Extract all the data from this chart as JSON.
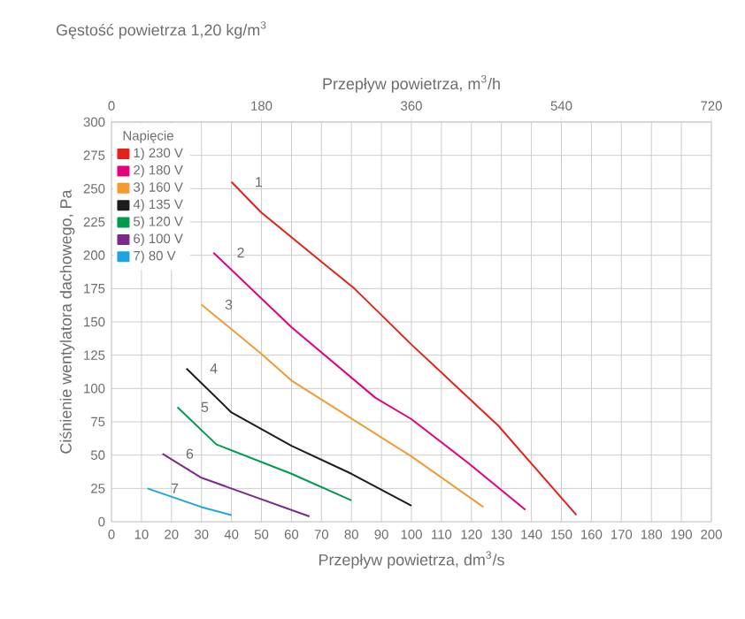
{
  "chart_data": {
    "type": "line",
    "title": "Gęstość powietrza 1,20 kg/m$^{3}$",
    "xlabel": "Przepływ powietrza, dm$^{3}$/s",
    "x2label": "Przepływ powietrza, m$^{3}$/h",
    "ylabel": "Ciśnienie wentylatora dachowego, Pa",
    "legend_title": "Napięcie",
    "legend": "top left",
    "grid": true,
    "marker": "none",
    "line_style": "solid",
    "xlim": [
      0,
      200
    ],
    "xticks": [
      0,
      10,
      20,
      30,
      40,
      50,
      60,
      70,
      80,
      90,
      100,
      110,
      120,
      130,
      140,
      150,
      160,
      170,
      180,
      190,
      200
    ],
    "x2lim": [
      0,
      720
    ],
    "x2ticks": [
      0,
      180,
      360,
      540,
      720
    ],
    "ylim": [
      0,
      300
    ],
    "yticks": [
      0,
      25,
      50,
      75,
      100,
      125,
      150,
      175,
      200,
      225,
      250,
      275,
      300
    ],
    "series": [
      {
        "name": "1) 230 V",
        "color": "#e2231a",
        "x": [
          40,
          50,
          69,
          81,
          100,
          129,
          155
        ],
        "values": [
          255,
          232,
          197,
          175,
          133,
          72,
          5
        ]
      },
      {
        "name": "2) 180 V",
        "color": "#e5007d",
        "x": [
          34,
          60,
          88,
          100,
          119,
          138
        ],
        "values": [
          202,
          146,
          93,
          77,
          44,
          9
        ]
      },
      {
        "name": "3) 160 V",
        "color": "#f39a32",
        "x": [
          30,
          50,
          60,
          100,
          124
        ],
        "values": [
          163,
          126,
          106,
          49,
          11
        ]
      },
      {
        "name": "4) 135 V",
        "color": "#1d1d1b",
        "x": [
          25,
          40,
          60,
          80,
          100
        ],
        "values": [
          115,
          82,
          57,
          36,
          12
        ]
      },
      {
        "name": "5) 120 V",
        "color": "#009a4e",
        "x": [
          22,
          35,
          60,
          80
        ],
        "values": [
          86,
          58,
          36,
          16
        ]
      },
      {
        "name": "6) 100 V",
        "color": "#7b2a8c",
        "x": [
          17,
          30,
          66
        ],
        "values": [
          51,
          33,
          4
        ]
      },
      {
        "name": "7) 80 V",
        "color": "#1fa3e0",
        "x": [
          12,
          30,
          40
        ],
        "values": [
          25,
          11,
          5
        ]
      }
    ],
    "annotations": [
      "1",
      "2",
      "3",
      "4",
      "5",
      "6",
      "7"
    ]
  }
}
